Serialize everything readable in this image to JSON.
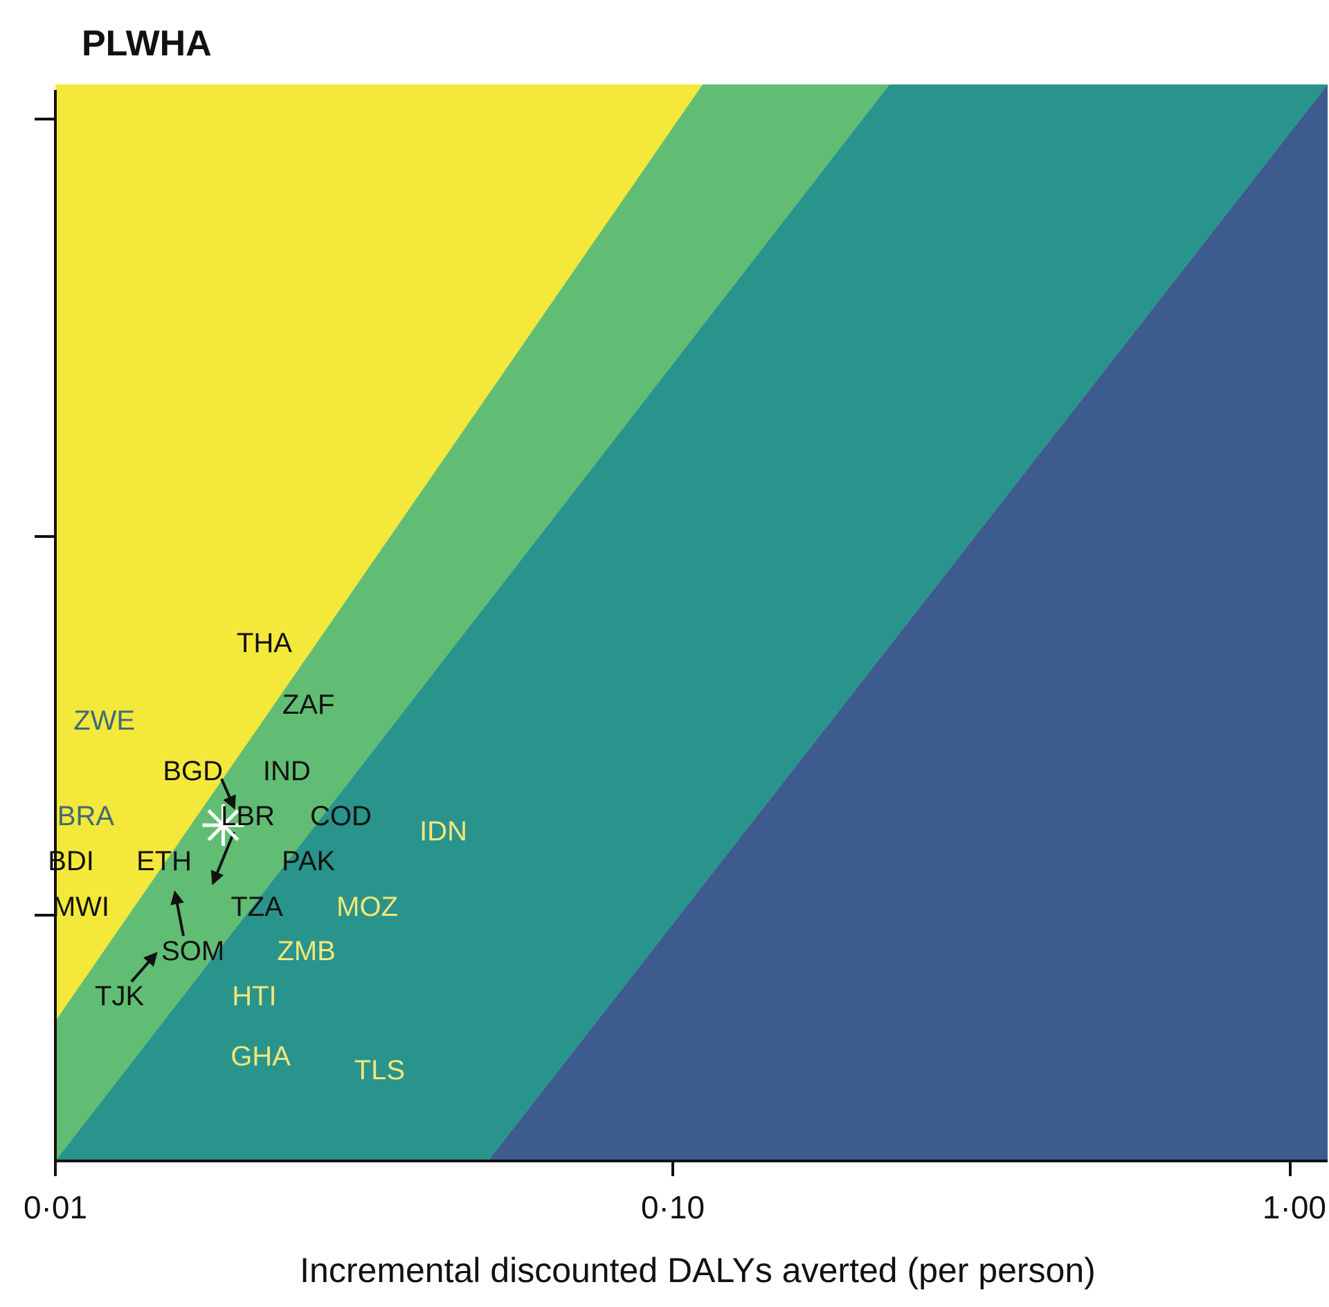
{
  "chart_data": {
    "type": "scatter",
    "title": "PLWHA",
    "xlabel": "Incremental discounted DALYs averted (per person)",
    "ylabel": "",
    "x_scale": "log",
    "xlim": [
      0.01,
      1.0
    ],
    "x_ticks": [
      "0·01",
      "0·10",
      "1·00"
    ],
    "x_tick_values": [
      0.01,
      0.1,
      1.0
    ],
    "y_ticks_count": 3,
    "regions": [
      {
        "color": "#F4E83B"
      },
      {
        "color": "#61BD73"
      },
      {
        "color": "#29948C"
      },
      {
        "color": "#3D5B8E"
      }
    ],
    "points": [
      {
        "label": "THA",
        "x": 0.0218,
        "color": "#111111"
      },
      {
        "label": "ZAF",
        "x": 0.0257,
        "color": "#111111"
      },
      {
        "label": "ZWE",
        "x": 0.012,
        "color": "#3E6A7A"
      },
      {
        "label": "BGD",
        "x": 0.0167,
        "color": "#111111"
      },
      {
        "label": "IND",
        "x": 0.0237,
        "color": "#111111"
      },
      {
        "label": "BRA",
        "x": 0.0112,
        "color": "#3E6A7A"
      },
      {
        "label": "LBR",
        "x": 0.0205,
        "color": "#111111"
      },
      {
        "label": "COD",
        "x": 0.029,
        "color": "#111111"
      },
      {
        "label": "IDN",
        "x": 0.0425,
        "color": "#F3E77A"
      },
      {
        "label": "BDI",
        "x": 0.0106,
        "color": "#111111"
      },
      {
        "label": "ETH",
        "x": 0.015,
        "color": "#111111"
      },
      {
        "label": "PAK",
        "x": 0.0257,
        "color": "#111111"
      },
      {
        "label": "MWI",
        "x": 0.011,
        "color": "#111111"
      },
      {
        "label": "TZA",
        "x": 0.0212,
        "color": "#111111"
      },
      {
        "label": "MOZ",
        "x": 0.032,
        "color": "#F3E77A"
      },
      {
        "label": "SOM",
        "x": 0.0167,
        "color": "#111111"
      },
      {
        "label": "ZMB",
        "x": 0.0255,
        "color": "#F3E77A"
      },
      {
        "label": "TJK",
        "x": 0.0127,
        "color": "#111111"
      },
      {
        "label": "HTI",
        "x": 0.021,
        "color": "#F3E77A"
      },
      {
        "label": "GHA",
        "x": 0.0215,
        "color": "#F3E77A"
      },
      {
        "label": "TLS",
        "x": 0.0335,
        "color": "#F3E77A"
      }
    ],
    "highlight_marker": {
      "type": "asterisk",
      "color": "#ffffff",
      "x": 0.0187
    },
    "arrows": [
      {
        "from": "BGD",
        "to": "LBR"
      },
      {
        "from": "LBR",
        "to": "TZA"
      },
      {
        "from": "SOM",
        "to": "ETH"
      },
      {
        "from": "TJK",
        "to": "SOM"
      }
    ],
    "grid": false,
    "legend": "none"
  }
}
